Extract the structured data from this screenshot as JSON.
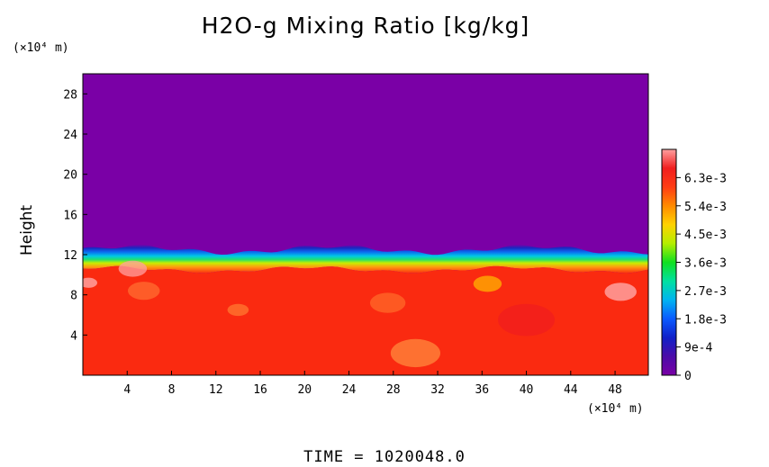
{
  "chart_data": {
    "type": "heatmap",
    "title": "H2O-g Mixing Ratio [kg/kg]",
    "x_unit": "(×10⁴ m)",
    "y_unit": "(×10⁴ m)",
    "ylabel": "Height",
    "xlabel": "",
    "x_ticks": [
      "4",
      "8",
      "12",
      "16",
      "20",
      "24",
      "28",
      "32",
      "36",
      "40",
      "44",
      "48"
    ],
    "y_ticks": [
      "4",
      "8",
      "12",
      "16",
      "20",
      "24",
      "28"
    ],
    "xlim": [
      0,
      51
    ],
    "ylim": [
      0,
      30
    ],
    "colorbar": {
      "labels": [
        "0",
        "9e-4",
        "1.8e-3",
        "2.7e-3",
        "3.6e-3",
        "4.5e-3",
        "5.4e-3",
        "6.3e-3"
      ],
      "range": [
        0,
        0.0072
      ]
    },
    "field_summary": {
      "lower_layer_top_height": 10.5,
      "lower_layer_value": 0.0063,
      "upper_layer_value": 0,
      "transition_top_height": 12.5
    }
  },
  "footer": "TIME  =  1020048.0",
  "colors": {
    "upper": "#7a00a6",
    "lower": "#fa2a10",
    "colormap": [
      "#7a00a6",
      "#4b0ca8",
      "#1020c8",
      "#0a5aff",
      "#00b4f0",
      "#00e0a0",
      "#10e020",
      "#b4ee00",
      "#ffd200",
      "#ff8a00",
      "#ff3c14",
      "#f01e1e",
      "#ffa0a0"
    ]
  }
}
